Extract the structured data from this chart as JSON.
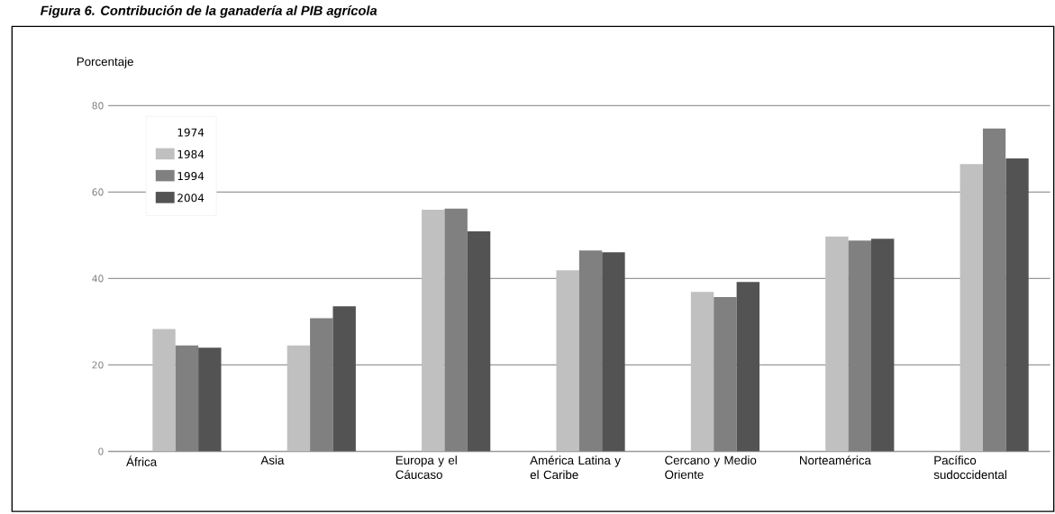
{
  "chart_data": {
    "type": "bar",
    "title": "Figura 6. Contribución de la ganadería al PIB agrícola",
    "ylabel": "Porcentaje",
    "categories": [
      "África",
      "Asia",
      "Europa y el Cáucaso",
      "América Latina y el Caribe",
      "Cercano y Medio Oriente",
      "Norteamérica",
      "Pacífico sudoccidental"
    ],
    "series": [
      {
        "name": "1974",
        "values": [
          null,
          null,
          null,
          null,
          null,
          null,
          null
        ]
      },
      {
        "name": "1984",
        "color": "#c0c0c0",
        "values": [
          28.3,
          24.5,
          55.9,
          41.9,
          36.9,
          49.7,
          66.5
        ]
      },
      {
        "name": "1994",
        "color": "#808080",
        "values": [
          24.5,
          30.8,
          56.2,
          46.5,
          35.7,
          48.8,
          74.7
        ]
      },
      {
        "name": "2004",
        "color": "#535353",
        "values": [
          24.0,
          33.6,
          50.9,
          46.1,
          39.2,
          49.2,
          67.8
        ]
      }
    ],
    "ylim": [
      0,
      80
    ],
    "yticks": [
      0,
      20,
      40,
      60,
      80
    ],
    "grid": "y",
    "legend": "top left"
  }
}
